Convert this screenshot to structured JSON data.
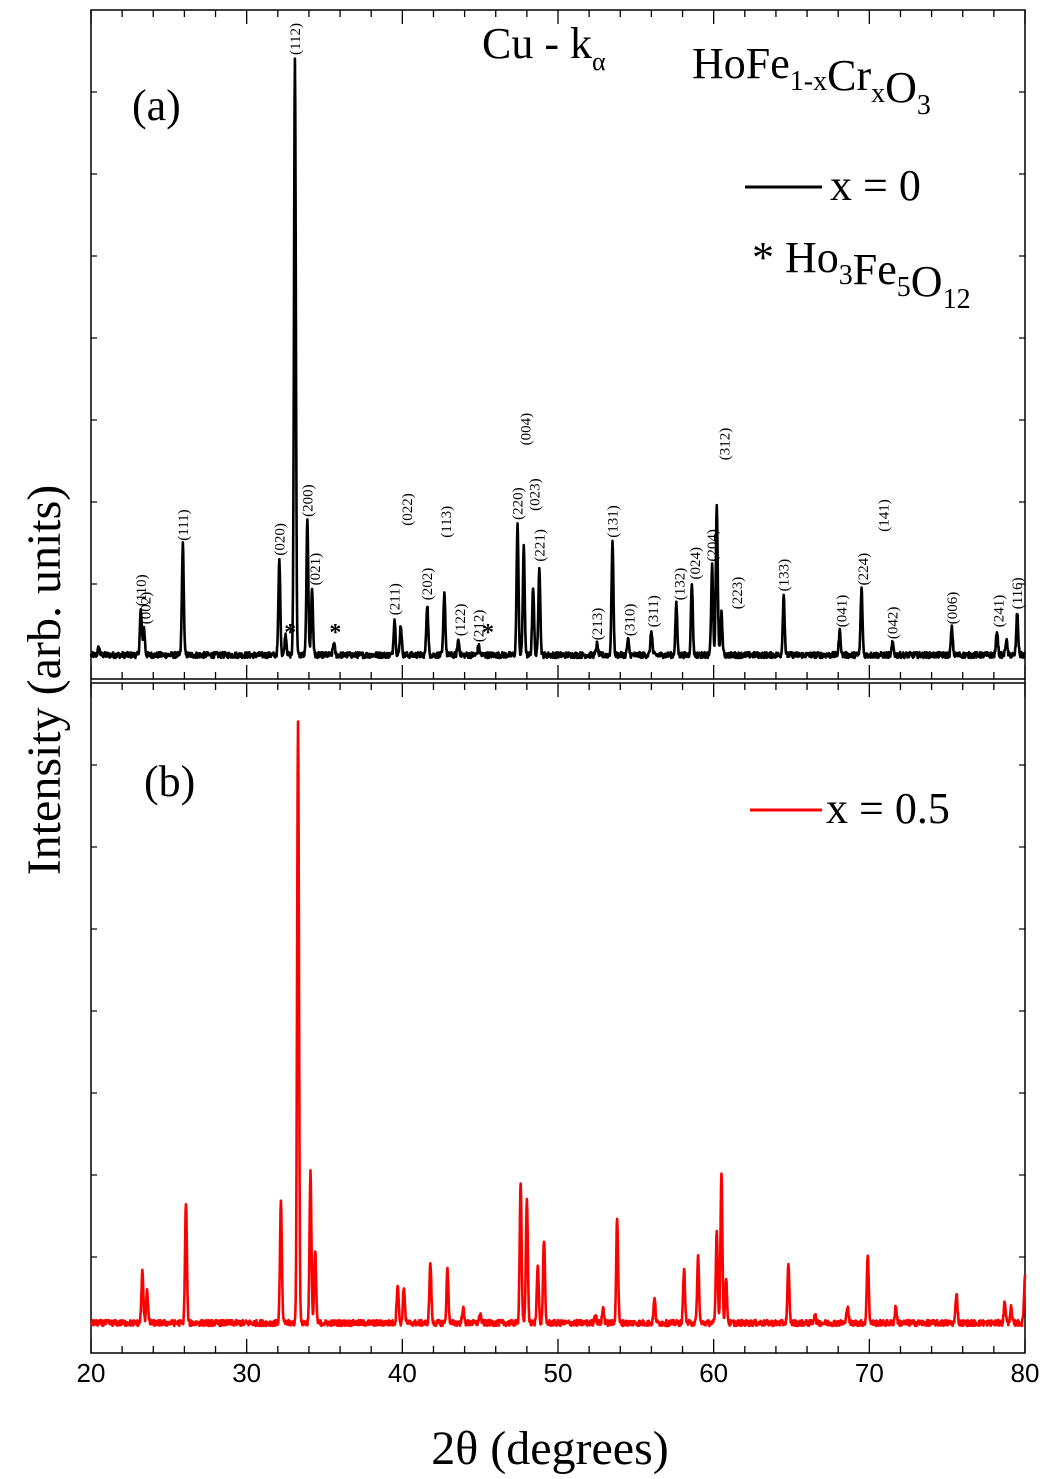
{
  "chart_data": [
    {
      "panel": "(a)",
      "type": "line",
      "xlim": [
        20,
        80
      ],
      "x_ticks": [
        20,
        30,
        40,
        50,
        60,
        70,
        80
      ],
      "tick_labels_x": [
        "20",
        "30",
        "40",
        "50",
        "60",
        "70",
        "80"
      ],
      "xlabel": "2θ (degrees)",
      "ylabel": "Intensity (arb. units)",
      "radiation": {
        "base": "Cu - k",
        "sub": "α"
      },
      "compound": [
        {
          "t": "HoFe",
          "s": 0
        },
        {
          "t": "1-x",
          "s": 1
        },
        {
          "t": "Cr",
          "s": 0
        },
        {
          "t": "x",
          "s": 1
        },
        {
          "t": "O",
          "s": 0
        },
        {
          "t": "3",
          "s": 1
        }
      ],
      "series": [
        {
          "name": "x = 0",
          "color": "#000000",
          "baseline": 1.0,
          "peaks": [
            [
              20.5,
              1.2
            ],
            [
              23.2,
              7.5
            ],
            [
              23.4,
              4.5
            ],
            [
              25.9,
              18.5
            ],
            [
              32.1,
              16.0
            ],
            [
              32.5,
              3.5
            ],
            [
              33.1,
              100.0
            ],
            [
              33.9,
              22.5
            ],
            [
              34.2,
              11.0
            ],
            [
              35.6,
              2.0
            ],
            [
              39.5,
              6.0
            ],
            [
              39.9,
              5.0
            ],
            [
              41.6,
              8.5
            ],
            [
              42.7,
              10.5
            ],
            [
              43.6,
              2.5
            ],
            [
              44.9,
              1.5
            ],
            [
              47.4,
              22.0
            ],
            [
              47.8,
              18.0
            ],
            [
              48.4,
              11.5
            ],
            [
              48.8,
              15.0
            ],
            [
              52.5,
              1.8
            ],
            [
              53.5,
              19.0
            ],
            [
              54.5,
              2.5
            ],
            [
              56.0,
              4.0
            ],
            [
              57.6,
              8.5
            ],
            [
              58.6,
              12.0
            ],
            [
              59.9,
              15.0
            ],
            [
              60.2,
              25.0
            ],
            [
              60.5,
              7.0
            ],
            [
              64.5,
              10.0
            ],
            [
              68.1,
              4.0
            ],
            [
              69.5,
              11.0
            ],
            [
              71.5,
              2.0
            ],
            [
              75.3,
              4.5
            ],
            [
              78.2,
              4.0
            ],
            [
              78.8,
              2.5
            ],
            [
              79.5,
              7.0
            ]
          ]
        },
        {
          "name": "* Ho3Fe5O12",
          "marker": "*",
          "color": "#000000",
          "positions": [
            32.8,
            35.7,
            45.5
          ]
        }
      ],
      "legend": [
        {
          "type": "line",
          "label": "x = 0"
        },
        {
          "type": "star",
          "parts": [
            {
              "t": "* Ho",
              "s": 0
            },
            {
              "t": "3",
              "s": 1
            },
            {
              "t": "Fe",
              "s": 0
            },
            {
              "t": "5",
              "s": 1
            },
            {
              "t": "O",
              "s": 0
            },
            {
              "t": "12",
              "s": 1
            }
          ]
        }
      ],
      "annotations": [
        {
          "label": "(110)",
          "x": 23.2,
          "h": 7.5
        },
        {
          "label": "(002)",
          "x": 23.5,
          "h": 4.5
        },
        {
          "label": "(111)",
          "x": 25.9,
          "h": 18.5
        },
        {
          "label": "(020)",
          "x": 32.1,
          "h": 16.0
        },
        {
          "label": "(112)",
          "x": 33.1,
          "h": 100.0
        },
        {
          "label": "(200)",
          "x": 33.9,
          "h": 22.5
        },
        {
          "label": "(021)",
          "x": 34.4,
          "h": 11.0
        },
        {
          "label": "(211)",
          "x": 39.5,
          "h": 6.0
        },
        {
          "label": "(022)",
          "x": 40.3,
          "h": 21.0
        },
        {
          "label": "(202)",
          "x": 41.6,
          "h": 8.5
        },
        {
          "label": "(113)",
          "x": 42.8,
          "h": 19.0
        },
        {
          "label": "(122)",
          "x": 43.7,
          "h": 2.5
        },
        {
          "label": "(212)",
          "x": 44.9,
          "h": 1.5
        },
        {
          "label": "(220)",
          "x": 47.4,
          "h": 22.0
        },
        {
          "label": "(004)",
          "x": 47.9,
          "h": 34.5
        },
        {
          "label": "(023)",
          "x": 48.5,
          "h": 23.5
        },
        {
          "label": "(221)",
          "x": 48.8,
          "h": 15.0
        },
        {
          "label": "(213)",
          "x": 52.5,
          "h": 1.8
        },
        {
          "label": "(131)",
          "x": 53.5,
          "h": 19.0
        },
        {
          "label": "(310)",
          "x": 54.6,
          "h": 2.5
        },
        {
          "label": "(311)",
          "x": 56.1,
          "h": 4.0
        },
        {
          "label": "(132)",
          "x": 57.8,
          "h": 8.5
        },
        {
          "label": "(024)",
          "x": 58.8,
          "h": 12.0
        },
        {
          "label": "(204)",
          "x": 59.9,
          "h": 15.0
        },
        {
          "label": "(312)",
          "x": 60.7,
          "h": 32.0
        },
        {
          "label": "(223)",
          "x": 61.5,
          "h": 7.0
        },
        {
          "label": "(133)",
          "x": 64.5,
          "h": 10.0
        },
        {
          "label": "(041)",
          "x": 68.2,
          "h": 4.0
        },
        {
          "label": "(224)",
          "x": 69.6,
          "h": 11.0
        },
        {
          "label": "(141)",
          "x": 70.9,
          "h": 20.0
        },
        {
          "label": "(042)",
          "x": 71.5,
          "h": 2.0
        },
        {
          "label": "(006)",
          "x": 75.3,
          "h": 4.5
        },
        {
          "label": "(241)",
          "x": 78.3,
          "h": 4.0
        },
        {
          "label": "(116)",
          "x": 79.5,
          "h": 7.0
        }
      ]
    },
    {
      "panel": "(b)",
      "type": "line",
      "xlim": [
        20,
        80
      ],
      "series": [
        {
          "name": "x = 0.5",
          "color": "#ff0000",
          "baseline": 1.0,
          "peaks": [
            [
              23.3,
              8.5
            ],
            [
              23.6,
              5.5
            ],
            [
              26.1,
              20.0
            ],
            [
              32.2,
              20.0
            ],
            [
              33.3,
              100.0
            ],
            [
              34.1,
              25.0
            ],
            [
              34.4,
              12.0
            ],
            [
              39.7,
              6.5
            ],
            [
              40.1,
              6.0
            ],
            [
              41.8,
              10.0
            ],
            [
              42.9,
              9.0
            ],
            [
              43.9,
              2.5
            ],
            [
              45.0,
              1.5
            ],
            [
              47.6,
              23.5
            ],
            [
              48.0,
              21.0
            ],
            [
              48.7,
              10.0
            ],
            [
              49.1,
              14.0
            ],
            [
              52.4,
              1.5
            ],
            [
              52.9,
              2.5
            ],
            [
              53.8,
              17.5
            ],
            [
              56.2,
              4.0
            ],
            [
              58.1,
              9.0
            ],
            [
              59.0,
              11.0
            ],
            [
              60.2,
              15.5
            ],
            [
              60.5,
              25.0
            ],
            [
              60.8,
              7.0
            ],
            [
              64.8,
              9.5
            ],
            [
              66.5,
              1.5
            ],
            [
              68.6,
              3.0
            ],
            [
              69.9,
              11.5
            ],
            [
              71.7,
              2.8
            ],
            [
              75.6,
              5.0
            ],
            [
              78.7,
              3.5
            ],
            [
              79.1,
              2.5
            ],
            [
              80.0,
              8.0
            ]
          ]
        }
      ],
      "legend": [
        {
          "type": "line",
          "label": "x = 0.5"
        }
      ]
    }
  ]
}
